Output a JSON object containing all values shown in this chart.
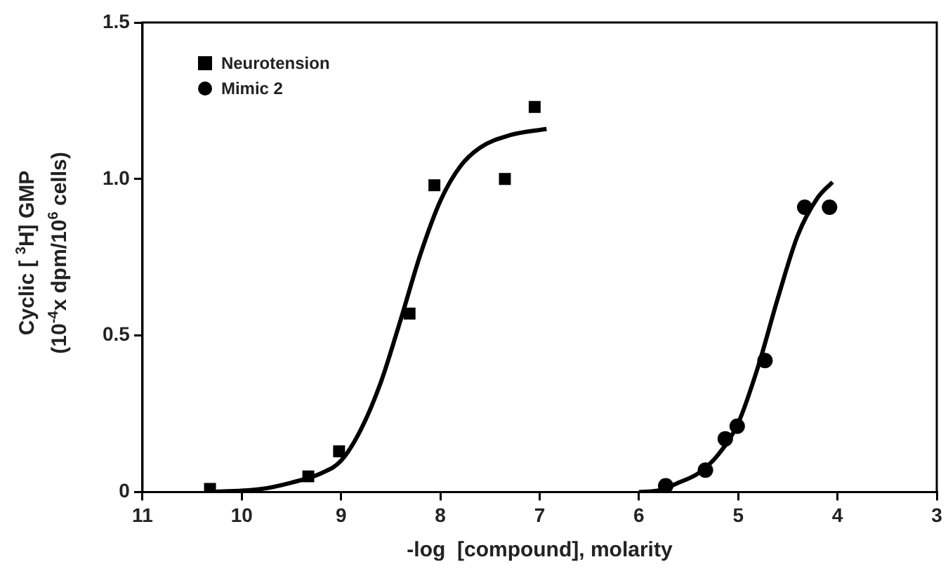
{
  "chart_data": {
    "type": "scatter",
    "xlabel": "-log  [compound], molarity",
    "ylabel": "Cyclic [ $^{3}$H] GMP\n(10$^{-4}$x dpm/10$^{6}$ cells)",
    "xlim": [
      11,
      3
    ],
    "xticks": [
      11,
      10,
      9,
      8,
      7,
      6,
      5,
      4,
      3
    ],
    "ylim": [
      0,
      1.5
    ],
    "yticks": [
      0,
      {
        "value": 0.5,
        "label": "0.5"
      },
      {
        "value": 1,
        "label": "1.0"
      },
      {
        "value": 1.5,
        "label": "1.5"
      }
    ],
    "grid": false,
    "legend": "top left",
    "series": [
      {
        "name": "Neurotension",
        "color": "#000000",
        "marker": "square",
        "x": [
          10.32,
          9.33,
          9.02,
          8.31,
          8.06,
          7.35,
          7.05
        ],
        "values": [
          0.01,
          0.05,
          0.13,
          0.57,
          0.98,
          1.0,
          1.23
        ]
      },
      {
        "name": "Mimic 2",
        "color": "#000000",
        "marker": "circle",
        "x": [
          5.73,
          5.33,
          5.13,
          5.01,
          4.73,
          4.33,
          4.08
        ],
        "values": [
          0.02,
          0.07,
          0.17,
          0.21,
          0.42,
          0.91,
          0.91
        ]
      },
      {
        "type": "line",
        "color": "#000000",
        "marker": "none",
        "x": [
          10.3,
          9.8,
          9.5,
          9.2,
          9.0,
          8.8,
          8.6,
          8.4,
          8.2,
          8.0,
          7.8,
          7.6,
          7.3,
          6.93
        ],
        "values": [
          0,
          0.01,
          0.03,
          0.06,
          0.1,
          0.2,
          0.35,
          0.55,
          0.76,
          0.93,
          1.04,
          1.1,
          1.14,
          1.16
        ]
      },
      {
        "type": "line",
        "color": "#000000",
        "marker": "none",
        "x": [
          6.0,
          5.8,
          5.6,
          5.4,
          5.2,
          5.0,
          4.8,
          4.6,
          4.4,
          4.2,
          4.05
        ],
        "values": [
          0,
          0.005,
          0.03,
          0.06,
          0.12,
          0.22,
          0.4,
          0.62,
          0.82,
          0.94,
          0.99
        ]
      }
    ]
  }
}
